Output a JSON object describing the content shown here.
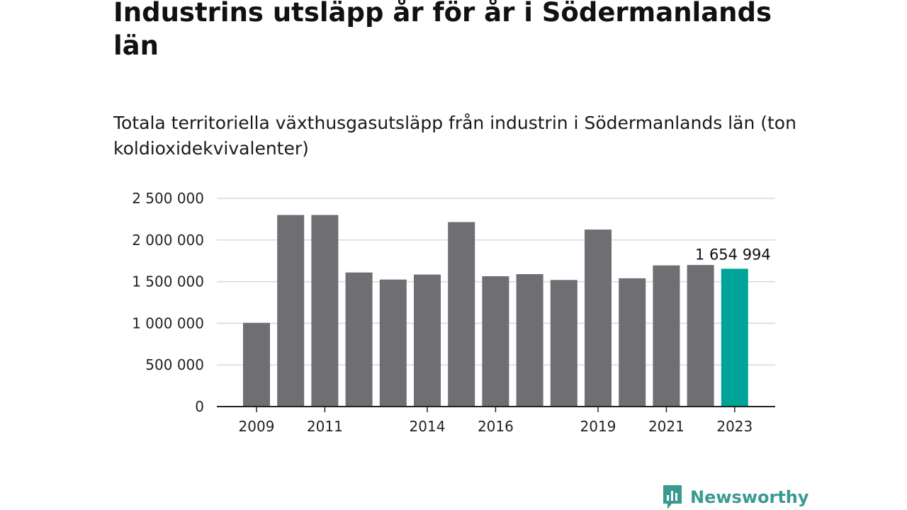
{
  "colors": {
    "bar": "#6e6e73",
    "highlight": "#00a499",
    "grid": "#d9d9d9",
    "axis": "#222222",
    "brand": "#3a9a92"
  },
  "brand": {
    "name": "Newsworthy",
    "icon": "newsworthy-logo-icon"
  },
  "chart_data": {
    "type": "bar",
    "title": "Industrins utsläpp år för år i Södermanlands län",
    "subtitle": "Totala territoriella växthusgasutsläpp från industrin i Södermanlands län (ton koldioxidekvivalenter)",
    "categories": [
      "2009",
      "2010",
      "2011",
      "2012",
      "2013",
      "2014",
      "2015",
      "2016",
      "2017",
      "2018",
      "2019",
      "2020",
      "2021",
      "2022",
      "2023"
    ],
    "values": [
      1005000,
      2300000,
      2300000,
      1610000,
      1525000,
      1585000,
      2215000,
      1565000,
      1590000,
      1520000,
      2125000,
      1540000,
      1695000,
      1700000,
      1654994
    ],
    "highlight_index": 14,
    "data_labels": [
      {
        "index": 14,
        "text": "1 654 994"
      }
    ],
    "x_tick_labels": [
      "2009",
      "2011",
      "2014",
      "2016",
      "2019",
      "2021",
      "2023"
    ],
    "y_ticks": [
      0,
      500000,
      1000000,
      1500000,
      2000000,
      2500000
    ],
    "y_tick_labels": [
      "0",
      "500 000",
      "1 000 000",
      "1 500 000",
      "2 000 000",
      "2 500 000"
    ],
    "ylim": [
      0,
      2500000
    ],
    "grid": true,
    "legend": "none"
  }
}
